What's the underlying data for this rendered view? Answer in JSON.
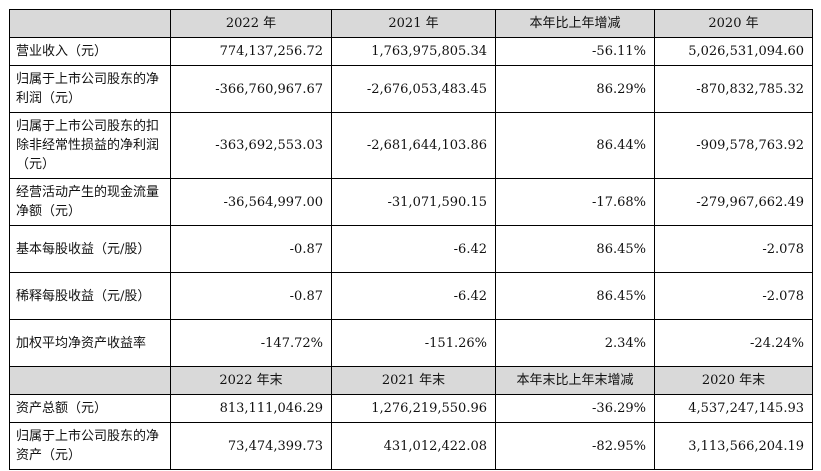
{
  "header1": [
    "",
    "2022 年",
    "2021 年",
    "本年比上年增减",
    "2020 年"
  ],
  "rows1": [
    {
      "label": "营业收入（元）",
      "values": [
        "774,137,256.72",
        "1,763,975,805.34",
        "-56.11%",
        "5,026,531,094.60"
      ]
    },
    {
      "label": "归属于上市公司股东的净利润（元）",
      "values": [
        "-366,760,967.67",
        "-2,676,053,483.45",
        "86.29%",
        "-870,832,785.32"
      ]
    },
    {
      "label": "归属于上市公司股东的扣除非经常性损益的净利润（元）",
      "values": [
        "-363,692,553.03",
        "-2,681,644,103.86",
        "86.44%",
        "-909,578,763.92"
      ]
    },
    {
      "label": "经营活动产生的现金流量净额（元）",
      "values": [
        "-36,564,997.00",
        "-31,071,590.15",
        "-17.68%",
        "-279,967,662.49"
      ]
    },
    {
      "label": "基本每股收益（元/股）",
      "values": [
        "-0.87",
        "-6.42",
        "86.45%",
        "-2.078"
      ]
    },
    {
      "label": "稀释每股收益（元/股）",
      "values": [
        "-0.87",
        "-6.42",
        "86.45%",
        "-2.078"
      ]
    },
    {
      "label": "加权平均净资产收益率",
      "values": [
        "-147.72%",
        "-151.26%",
        "2.34%",
        "-24.24%"
      ]
    }
  ],
  "header2": [
    "",
    "2022 年末",
    "2021 年末",
    "本年末比上年末增减",
    "2020 年末"
  ],
  "rows2": [
    {
      "label": "资产总额（元）",
      "values": [
        "813,111,046.29",
        "1,276,219,550.96",
        "-36.29%",
        "4,537,247,145.93"
      ]
    },
    {
      "label": "归属于上市公司股东的净资产（元）",
      "values": [
        "73,474,399.73",
        "431,012,422.08",
        "-82.95%",
        "3,113,566,204.19"
      ]
    }
  ]
}
